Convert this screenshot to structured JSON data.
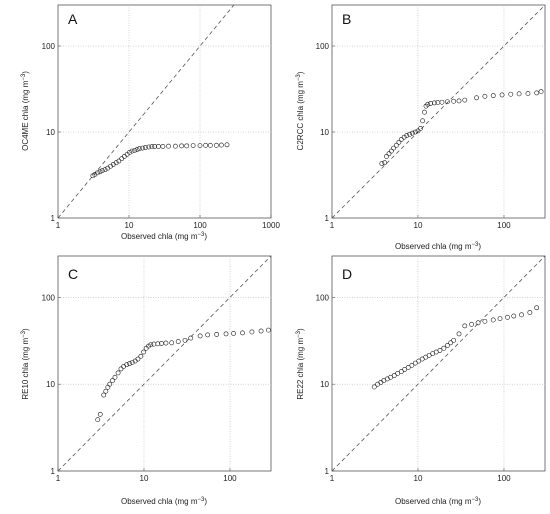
{
  "chart_data": [
    {
      "type": "scatter",
      "panel": "A",
      "xlabel_main": "Observed chla",
      "xlabel_unit": "(mg m",
      "ylabel_main": "OC4ME  chla",
      "ylabel_unit": "(mg m",
      "unit_exponent": "−3",
      "x_scale": "log",
      "y_scale": "log",
      "xlim": [
        1,
        1000
      ],
      "ylim": [
        1,
        300
      ],
      "x_ticks": [
        1,
        10,
        100,
        1000
      ],
      "x_tick_labels": [
        "1",
        "10",
        "100",
        "1000"
      ],
      "y_ticks": [
        1,
        10,
        100
      ],
      "y_tick_labels": [
        "1",
        "10",
        "100"
      ],
      "grid": true,
      "reference_line": "1:1",
      "x": [
        3.1,
        3.3,
        3.6,
        3.9,
        4.2,
        4.6,
        5.0,
        5.5,
        6.0,
        6.6,
        7.2,
        7.9,
        8.6,
        9.4,
        10.2,
        11.0,
        12.0,
        13.0,
        14.0,
        15.5,
        17.0,
        19.0,
        21.0,
        23.0,
        26.0,
        30.0,
        36.0,
        45.0,
        55.0,
        65.0,
        80.0,
        100.0,
        120.0,
        140.0,
        170.0,
        200.0,
        240.0
      ],
      "y": [
        3.1,
        3.2,
        3.35,
        3.45,
        3.55,
        3.65,
        3.8,
        4.0,
        4.2,
        4.4,
        4.6,
        4.9,
        5.2,
        5.5,
        5.8,
        6.0,
        6.1,
        6.25,
        6.4,
        6.5,
        6.6,
        6.7,
        6.75,
        6.8,
        6.8,
        6.8,
        6.85,
        6.85,
        6.9,
        6.9,
        6.95,
        6.95,
        7.0,
        7.0,
        7.0,
        7.05,
        7.1
      ]
    },
    {
      "type": "scatter",
      "panel": "B",
      "xlabel_main": "Observed chla",
      "xlabel_unit": "(mg m",
      "ylabel_main": "C2RCC  chla",
      "ylabel_unit": "(mg m",
      "unit_exponent": "−3",
      "x_scale": "log",
      "y_scale": "log",
      "xlim": [
        1,
        300
      ],
      "ylim": [
        1,
        300
      ],
      "x_ticks": [
        1,
        10,
        100
      ],
      "x_tick_labels": [
        "1",
        "10",
        "100"
      ],
      "y_ticks": [
        1,
        10,
        100
      ],
      "y_tick_labels": [
        "1",
        "10",
        "100"
      ],
      "grid": true,
      "reference_line": "1:1",
      "x": [
        3.8,
        4.1,
        4.3,
        4.6,
        4.9,
        5.2,
        5.6,
        6.0,
        6.4,
        6.9,
        7.4,
        8.0,
        8.6,
        9.3,
        10.0,
        10.7,
        11.3,
        11.9,
        12.4,
        13.0,
        14.0,
        15.5,
        17.0,
        19.0,
        22.0,
        26.0,
        30.0,
        35.0,
        48.0,
        60.0,
        75.0,
        95.0,
        120.0,
        150.0,
        190.0,
        240.0,
        270.0
      ],
      "y": [
        4.3,
        4.4,
        5.2,
        5.6,
        6.0,
        6.5,
        7.0,
        7.6,
        8.2,
        8.7,
        9.1,
        9.4,
        9.7,
        10.0,
        10.3,
        11.0,
        13.5,
        17.0,
        20.0,
        21.0,
        21.5,
        21.8,
        22.0,
        22.2,
        22.5,
        22.8,
        23.0,
        23.5,
        25.0,
        26.0,
        26.5,
        27.0,
        27.5,
        27.8,
        28.0,
        28.5,
        29.5
      ]
    },
    {
      "type": "scatter",
      "panel": "C",
      "xlabel_main": "Observed chla",
      "xlabel_unit": "(mg m",
      "ylabel_main": "RE10  chla",
      "ylabel_unit": "(mg m",
      "unit_exponent": "−3",
      "x_scale": "log",
      "y_scale": "log",
      "xlim": [
        1,
        300
      ],
      "ylim": [
        1,
        300
      ],
      "x_ticks": [
        1,
        10,
        100
      ],
      "x_tick_labels": [
        "1",
        "10",
        "100"
      ],
      "y_ticks": [
        1,
        10,
        100
      ],
      "y_tick_labels": [
        "1",
        "10",
        "100"
      ],
      "grid": true,
      "reference_line": "1:1",
      "x": [
        2.9,
        3.1,
        3.4,
        3.6,
        3.8,
        4.0,
        4.3,
        4.6,
        5.0,
        5.4,
        5.8,
        6.3,
        6.8,
        7.3,
        7.9,
        8.5,
        9.2,
        9.9,
        10.6,
        11.3,
        12.0,
        13.0,
        14.5,
        16.0,
        18.0,
        21.0,
        25.0,
        30.0,
        35.0,
        45.0,
        55.0,
        70.0,
        90.0,
        110.0,
        140.0,
        180.0,
        230.0,
        280.0
      ],
      "y": [
        3.9,
        4.5,
        7.5,
        8.3,
        9.2,
        10.0,
        11.0,
        12.0,
        13.5,
        15.0,
        16.0,
        16.8,
        17.3,
        17.8,
        18.5,
        19.5,
        21.0,
        23.5,
        26.0,
        27.5,
        28.5,
        29.0,
        29.2,
        29.5,
        29.8,
        30.0,
        31.0,
        32.0,
        34.0,
        36.0,
        37.0,
        37.5,
        38.0,
        38.5,
        39.0,
        40.0,
        41.0,
        42.0
      ]
    },
    {
      "type": "scatter",
      "panel": "D",
      "xlabel_main": "Observed chla",
      "xlabel_unit": "(mg m",
      "ylabel_main": "RE22  chla",
      "ylabel_unit": "(mg m",
      "unit_exponent": "−3",
      "x_scale": "log",
      "y_scale": "log",
      "xlim": [
        1,
        300
      ],
      "ylim": [
        1,
        300
      ],
      "x_ticks": [
        1,
        10,
        100
      ],
      "x_tick_labels": [
        "1",
        "10",
        "100"
      ],
      "y_ticks": [
        1,
        10,
        100
      ],
      "y_tick_labels": [
        "1",
        "10",
        "100"
      ],
      "grid": true,
      "reference_line": "1:1",
      "x": [
        3.1,
        3.4,
        3.7,
        4.0,
        4.4,
        4.8,
        5.3,
        5.8,
        6.4,
        7.0,
        7.7,
        8.5,
        9.3,
        10.2,
        11.2,
        12.3,
        13.5,
        14.8,
        16.3,
        18.0,
        20.0,
        22.0,
        24.0,
        26.0,
        30.0,
        35.0,
        42.0,
        50.0,
        60.0,
        75.0,
        90.0,
        110.0,
        130.0,
        160.0,
        200.0,
        240.0
      ],
      "y": [
        9.3,
        10.0,
        10.5,
        11.0,
        11.5,
        12.0,
        12.6,
        13.3,
        14.0,
        14.8,
        15.6,
        16.5,
        17.5,
        18.5,
        19.5,
        20.5,
        21.5,
        22.5,
        23.5,
        24.5,
        26.0,
        28.0,
        30.0,
        32.0,
        38.0,
        47.0,
        49.0,
        51.0,
        53.0,
        55.0,
        57.0,
        59.0,
        61.0,
        63.0,
        67.0,
        76.0
      ]
    }
  ]
}
